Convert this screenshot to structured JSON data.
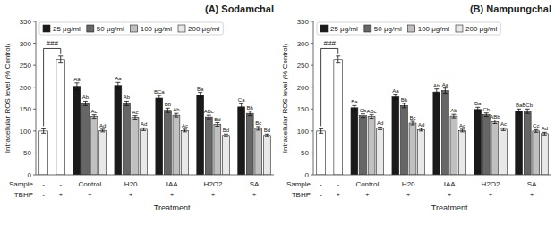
{
  "chart_data": [
    {
      "type": "bar",
      "title": "(A) Sodamchal",
      "y_label": "Intracellular ROS level (% Control)",
      "x_label": "Treatment",
      "categories": [
        "-",
        "-",
        "Control",
        "H20",
        "IAA",
        "H2O2",
        "SA"
      ],
      "tbhp": [
        "-",
        "+",
        "+",
        "+",
        "+",
        "+",
        "+"
      ],
      "row_labels": [
        "Sample",
        "TBHP"
      ],
      "ylim": [
        0,
        350
      ],
      "yticks": [
        0,
        50,
        100,
        150,
        200,
        250,
        300,
        350
      ],
      "grid": false,
      "legend": "upper left",
      "bracket": {
        "label": "###",
        "y": 288
      },
      "series": [
        {
          "color": "#ffffff",
          "values": [
            100,
            263,
            null,
            null,
            null,
            null,
            null
          ],
          "errors": [
            5,
            8,
            null,
            null,
            null,
            null,
            null
          ]
        },
        {
          "name": "25 μg/ml",
          "color": "#1a1a1a",
          "values": [
            null,
            null,
            202,
            204,
            175,
            182,
            155
          ],
          "errors": [
            null,
            null,
            8,
            7,
            6,
            6,
            7
          ],
          "annotations": [
            null,
            null,
            "Aa",
            "Aa",
            "BCa",
            "Ba",
            "Ca"
          ]
        },
        {
          "name": "50 μg/ml",
          "color": "#666666",
          "values": [
            null,
            null,
            163,
            163,
            147,
            132,
            140
          ],
          "errors": [
            null,
            null,
            5,
            5,
            5,
            4,
            5
          ],
          "annotations": [
            null,
            null,
            "Ab",
            "Ab",
            "Bb",
            "ABc",
            "Bb"
          ]
        },
        {
          "name": "100 μg/ml",
          "color": "#c0c0c0",
          "values": [
            null,
            null,
            133,
            131,
            136,
            115,
            106
          ],
          "errors": [
            null,
            null,
            4,
            4,
            4,
            4,
            4
          ],
          "annotations": [
            null,
            null,
            "Ac",
            "Ac",
            "Ab",
            "Bd",
            "Bc"
          ]
        },
        {
          "name": "200 μg/ml",
          "color": "#e8e8e8",
          "values": [
            null,
            null,
            101,
            104,
            101,
            90,
            90
          ],
          "errors": [
            null,
            null,
            3,
            3,
            3,
            3,
            3
          ],
          "annotations": [
            null,
            null,
            "Ad",
            "Ad",
            "Ac",
            "Bd",
            "Bd"
          ]
        }
      ]
    },
    {
      "type": "bar",
      "title": "(B) Nampungchal",
      "y_label": "Intracellular ROS level (% Control)",
      "x_label": "Treatment",
      "categories": [
        "-",
        "-",
        "Control",
        "H20",
        "IAA",
        "H2O2",
        "SA"
      ],
      "tbhp": [
        "-",
        "+",
        "+",
        "+",
        "+",
        "+",
        "+"
      ],
      "row_labels": [
        "Sample",
        "TBHP"
      ],
      "ylim": [
        0,
        350
      ],
      "yticks": [
        0,
        50,
        100,
        150,
        200,
        250,
        300,
        350
      ],
      "grid": false,
      "legend": "upper left",
      "bracket": {
        "label": "###",
        "y": 288
      },
      "series": [
        {
          "color": "#ffffff",
          "values": [
            100,
            263,
            null,
            null,
            null,
            null,
            null
          ],
          "errors": [
            5,
            8,
            null,
            null,
            null,
            null,
            null
          ]
        },
        {
          "name": "25 μg/ml",
          "color": "#1a1a1a",
          "values": [
            null,
            null,
            153,
            178,
            189,
            149,
            145
          ],
          "errors": [
            null,
            null,
            5,
            6,
            7,
            5,
            5
          ],
          "annotations": [
            null,
            null,
            "Ba",
            "Aa",
            "Ab",
            "Ba",
            "Ba"
          ]
        },
        {
          "name": "50 μg/ml",
          "color": "#666666",
          "values": [
            null,
            null,
            135,
            158,
            192,
            137,
            145
          ],
          "errors": [
            null,
            null,
            4,
            5,
            6,
            4,
            5
          ],
          "annotations": [
            null,
            null,
            "Cb",
            "Bb",
            "Aa",
            "Cb",
            "BCb"
          ]
        },
        {
          "name": "100 μg/ml",
          "color": "#c0c0c0",
          "values": [
            null,
            null,
            133,
            118,
            134,
            121,
            100
          ],
          "errors": [
            null,
            null,
            4,
            4,
            4,
            4,
            3
          ],
          "annotations": [
            null,
            null,
            "ABc",
            "Bc",
            "Ab",
            "ABb",
            "Cc"
          ]
        },
        {
          "name": "200 μg/ml",
          "color": "#e8e8e8",
          "values": [
            null,
            null,
            106,
            103,
            101,
            104,
            94
          ],
          "errors": [
            null,
            null,
            3,
            3,
            3,
            3,
            3
          ],
          "annotations": [
            null,
            null,
            "Ad",
            "Ad",
            "Ac",
            "Ac",
            "Ad"
          ]
        }
      ]
    }
  ]
}
